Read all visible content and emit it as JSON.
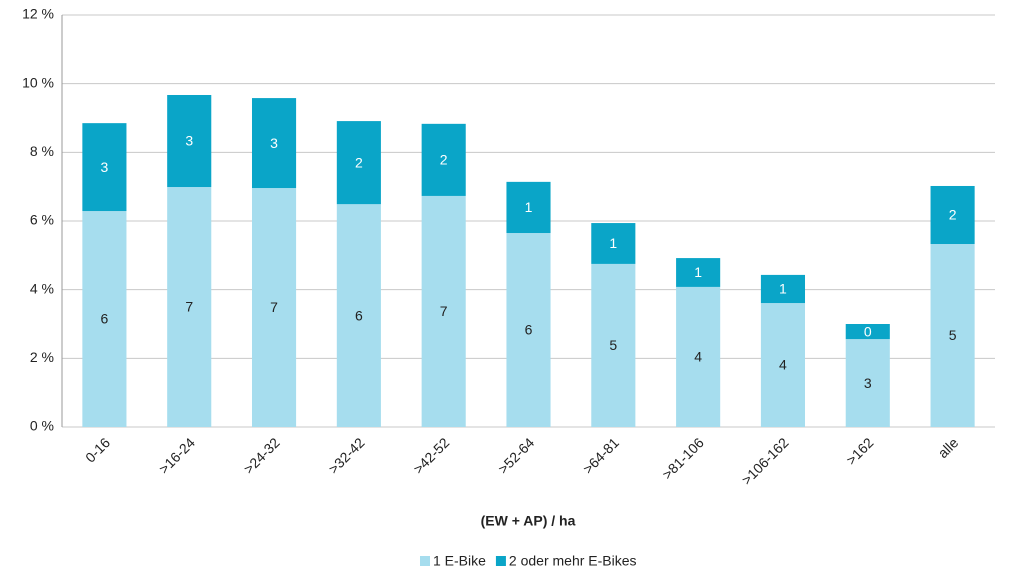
{
  "chart_data": {
    "type": "stacked_bar",
    "x_label": "(EW + AP) / ha",
    "categories": [
      "0-16",
      ">16-24",
      ">24-32",
      ">32-42",
      ">42-52",
      ">52-64",
      ">64-81",
      ">81-106",
      ">106-162",
      ">162",
      "alle"
    ],
    "series": [
      {
        "name": "1 E-Bike",
        "color": "#a6ddee",
        "values": [
          6.29,
          6.99,
          6.96,
          6.49,
          6.73,
          5.65,
          4.75,
          4.08,
          3.61,
          2.56,
          5.33
        ],
        "value_labels": [
          "6",
          "7",
          "7",
          "6",
          "7",
          "6",
          "5",
          "4",
          "4",
          "3",
          "5"
        ]
      },
      {
        "name": "2 oder mehr E-Bikes",
        "color": "#0aa5c8",
        "values": [
          2.56,
          2.68,
          2.62,
          2.42,
          2.1,
          1.49,
          1.19,
          0.84,
          0.82,
          0.44,
          1.69
        ],
        "value_labels": [
          "3",
          "3",
          "3",
          "2",
          "2",
          "1",
          "1",
          "1",
          "1",
          "0",
          "2"
        ]
      }
    ],
    "ylim": [
      0,
      12
    ],
    "yticks": [
      {
        "value": 0,
        "label": "0 %"
      },
      {
        "value": 2,
        "label": "2 %"
      },
      {
        "value": 4,
        "label": "4 %"
      },
      {
        "value": 6,
        "label": "6 %"
      },
      {
        "value": 8,
        "label": "8 %"
      },
      {
        "value": 10,
        "label": "10 %"
      },
      {
        "value": 12,
        "label": "12 %"
      }
    ],
    "grid": true,
    "legend": "bottom"
  }
}
